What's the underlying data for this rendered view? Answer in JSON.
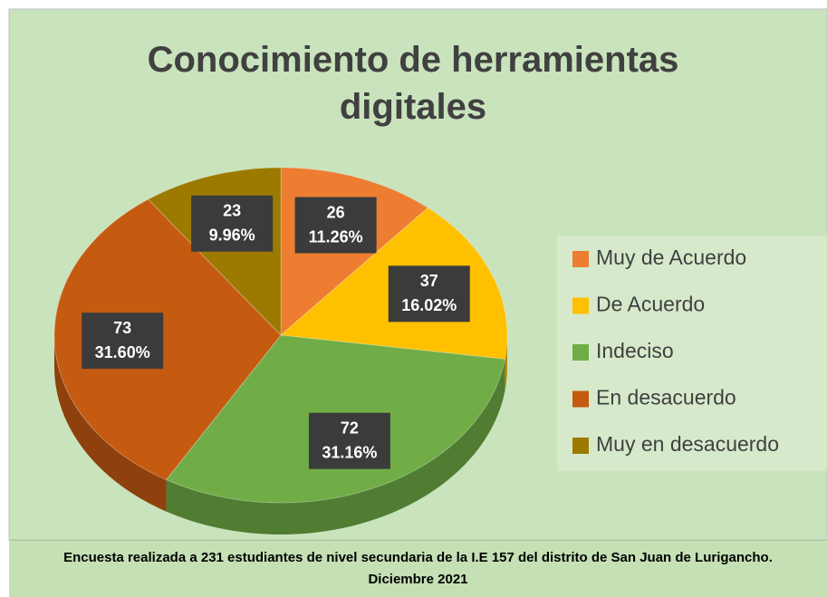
{
  "chart_data": {
    "type": "pie",
    "title": "Conocimiento de herramientas digitales",
    "categories": [
      "Muy de Acuerdo",
      "De Acuerdo",
      "Indeciso",
      "En desacuerdo",
      "Muy en desacuerdo"
    ],
    "values": [
      26,
      37,
      72,
      73,
      23
    ],
    "percent_labels": [
      "11.26%",
      "16.02%",
      "31.16%",
      "31.60%",
      "9.96%"
    ],
    "colors": [
      "#ed7d31",
      "#ffc000",
      "#70ad47",
      "#c55a11",
      "#9c7a00"
    ],
    "legend": "right",
    "footnote": "Encuesta realizada a 231 estudiantes de nivel secundaria de la I.E 157 del distrito de San Juan de Lurigancho. Diciembre 2021"
  }
}
